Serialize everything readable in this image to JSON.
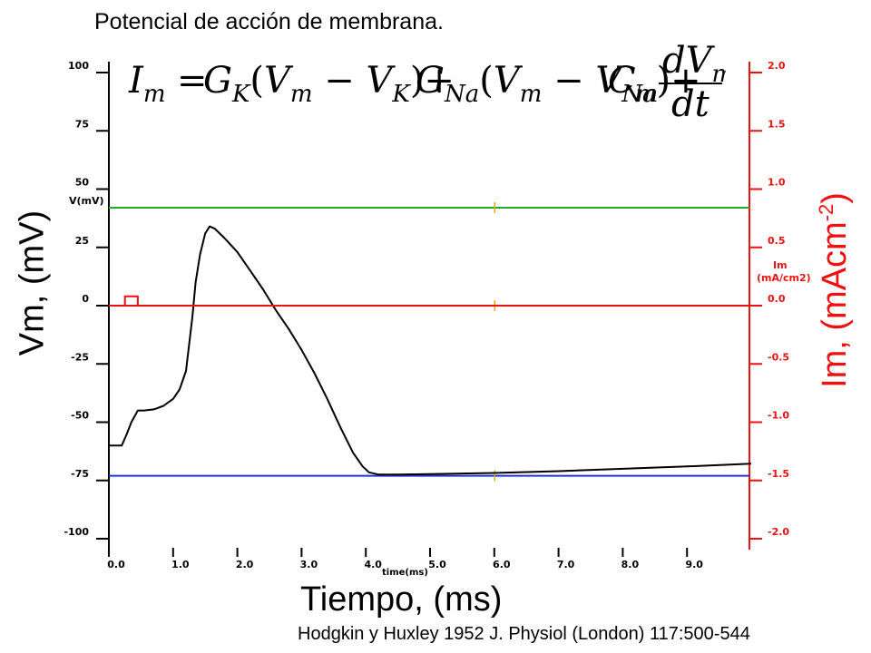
{
  "title": "Potencial de acción de membrana.",
  "equation": {
    "lhs": "I",
    "lhs_sub": "m",
    "terms": [
      {
        "G": "G",
        "G_sub": "K",
        "V": "V",
        "V_sub": "m",
        "E": "V",
        "E_sub": "K"
      },
      {
        "G": "G",
        "G_sub": "Na",
        "V": "V",
        "V_sub": "m",
        "E": "V",
        "E_sub": "Na"
      }
    ],
    "cap": "C",
    "cap_sub": "m",
    "num_d": "dV",
    "num_sub": "m",
    "den": "dt"
  },
  "ylabel_left": "Vm, (mV)",
  "ylabel_right_base": "Im, (mAcm",
  "ylabel_right_exp": "-2",
  "ylabel_right_close": ")",
  "xlabel": "Tiempo, (ms)",
  "citation": "Hodgkin y Huxley 1952 J. Physiol (London) 117:500-544",
  "colors": {
    "voltage": "#000000",
    "current": "#ee1111",
    "green": "#22aa22",
    "blue": "#2233cc",
    "marker": "#ddaa00"
  },
  "chart_data": {
    "type": "line",
    "xlabel_small": "time(ms)",
    "ylabel_small_left": "V(mV)",
    "ylabel_small_right": [
      "Im",
      "(mA/cm2)"
    ],
    "xlim": [
      0,
      10
    ],
    "ylim_left": [
      -100,
      100
    ],
    "ylim_right": [
      -2.0,
      2.0
    ],
    "x_ticks": [
      "0.0",
      "1.0",
      "2.0",
      "3.0",
      "4.0",
      "5.0",
      "6.0",
      "7.0",
      "8.0",
      "9.0"
    ],
    "x_tick_values": [
      0,
      1,
      2,
      3,
      4,
      5,
      6,
      7,
      8,
      9
    ],
    "y_left_ticks": [
      "100",
      "75",
      "50",
      "25",
      "0",
      "-25",
      "-50",
      "-75",
      "-100"
    ],
    "y_left_tick_values": [
      100,
      75,
      50,
      25,
      0,
      -25,
      -50,
      -75,
      -100
    ],
    "y_right_ticks": [
      "2.0",
      "1.5",
      "1.0",
      "0.5",
      "0.0",
      "-0.5",
      "-1.0",
      "-1.5",
      "-2.0"
    ],
    "y_right_tick_values": [
      2.0,
      1.5,
      1.0,
      0.5,
      0.0,
      -0.5,
      -1.0,
      -1.5,
      -2.0
    ],
    "reference_lines": [
      {
        "axis": "left",
        "value": 42,
        "color": "green"
      },
      {
        "axis": "left",
        "value": 0,
        "color": "current"
      },
      {
        "axis": "left",
        "value": -73,
        "color": "blue"
      }
    ],
    "vertical_marker_x": 6.0,
    "series": [
      {
        "axis": "left",
        "color": "voltage",
        "x": [
          0.0,
          0.2,
          0.28,
          0.35,
          0.45,
          0.55,
          0.7,
          0.85,
          1.0,
          1.1,
          1.2,
          1.3,
          1.35,
          1.42,
          1.5,
          1.57,
          1.65,
          1.8,
          2.0,
          2.2,
          2.4,
          2.6,
          2.8,
          3.0,
          3.2,
          3.4,
          3.6,
          3.8,
          3.95,
          4.05,
          4.2,
          4.5,
          5.0,
          6.0,
          7.0,
          8.0,
          9.0,
          10.0
        ],
        "y": [
          -60,
          -60,
          -55,
          -50,
          -45,
          -45,
          -44.5,
          -43,
          -40,
          -36,
          -28,
          -5,
          10,
          22,
          31,
          34,
          33,
          29,
          23,
          15,
          7,
          -2,
          -10,
          -19,
          -29,
          -40,
          -52,
          -63,
          -69,
          -71.5,
          -72.5,
          -72.5,
          -72.3,
          -71.8,
          -71.0,
          -70.0,
          -69.0,
          -67.8
        ]
      },
      {
        "axis": "right",
        "color": "current",
        "x": [
          0.0,
          0.25,
          0.25,
          0.45,
          0.45,
          10.0
        ],
        "y": [
          0.0,
          0.0,
          0.08,
          0.08,
          0.0,
          0.0
        ]
      }
    ]
  }
}
